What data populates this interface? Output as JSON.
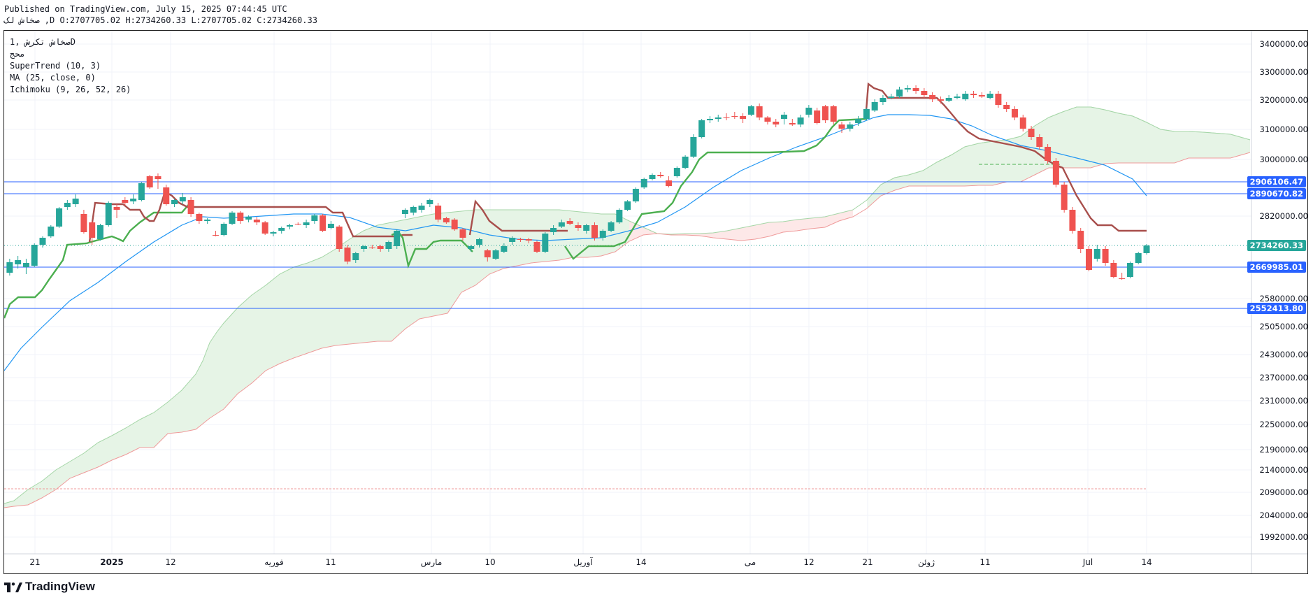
{
  "header": {
    "published": "Published on TradingView.com, July 15, 2025 07:44:45 UTC",
    "ohlc": "صخاش لک ,D O:2707705.02 H:2734260.33 L:2707705.02 C:2734260.33"
  },
  "legend": {
    "symbol": "صخاش تکرش ,1D",
    "exchange": "محج",
    "supertrend": "SuperTrend (10, 3)",
    "ma": "MA (25, close, 0)",
    "ichimoku": "Ichimoku (9, 26, 52, 26)"
  },
  "footer": {
    "brand": "TradingView"
  },
  "colors": {
    "up": "#26a69a",
    "down": "#ef5350",
    "supertrend_up": "#4caf50",
    "supertrend_down": "#a84f4c",
    "ma": "#2196f3",
    "cloud_green": "#e6f4e6",
    "cloud_red": "#fde8e8",
    "hline": "#2962ff"
  },
  "chart_data": {
    "type": "candlestick",
    "price_axis": [
      "3400000.00",
      "3300000.00",
      "3200000.00",
      "3100000.00",
      "3000000.00",
      "2820000.00",
      "2580000.00",
      "2505000.00",
      "2430000.00",
      "2370000.00",
      "2310000.00",
      "2250000.00",
      "2190000.00",
      "2140000.00",
      "2090000.00",
      "2040000.00",
      "1992000.00"
    ],
    "time_axis": [
      {
        "label": "21",
        "bold": false
      },
      {
        "label": "2025",
        "bold": true
      },
      {
        "label": "12",
        "bold": false
      },
      {
        "label": "فوریه",
        "bold": false
      },
      {
        "label": "11",
        "bold": false
      },
      {
        "label": "مارس",
        "bold": false
      },
      {
        "label": "10",
        "bold": false
      },
      {
        "label": "آوریل",
        "bold": false
      },
      {
        "label": "14",
        "bold": false
      },
      {
        "label": "می",
        "bold": false
      },
      {
        "label": "12",
        "bold": false
      },
      {
        "label": "21",
        "bold": false
      },
      {
        "label": "ژوئن",
        "bold": false
      },
      {
        "label": "11",
        "bold": false
      },
      {
        "label": "Jul",
        "bold": false
      },
      {
        "label": "14",
        "bold": false
      }
    ],
    "horizontal_lines": [
      {
        "value": "2906106.47",
        "color": "#2962ff"
      },
      {
        "value": "2890670.82",
        "color": "#2962ff"
      },
      {
        "value": "2669985.01",
        "color": "#2962ff"
      },
      {
        "value": "2552413.80",
        "color": "#2962ff"
      }
    ],
    "last_price": {
      "value": "2734260.33",
      "color": "#26a69a"
    },
    "last_candle": {
      "open": 2707705.02,
      "high": 2734260.33,
      "low": 2707705.02,
      "close": 2734260.33
    }
  }
}
